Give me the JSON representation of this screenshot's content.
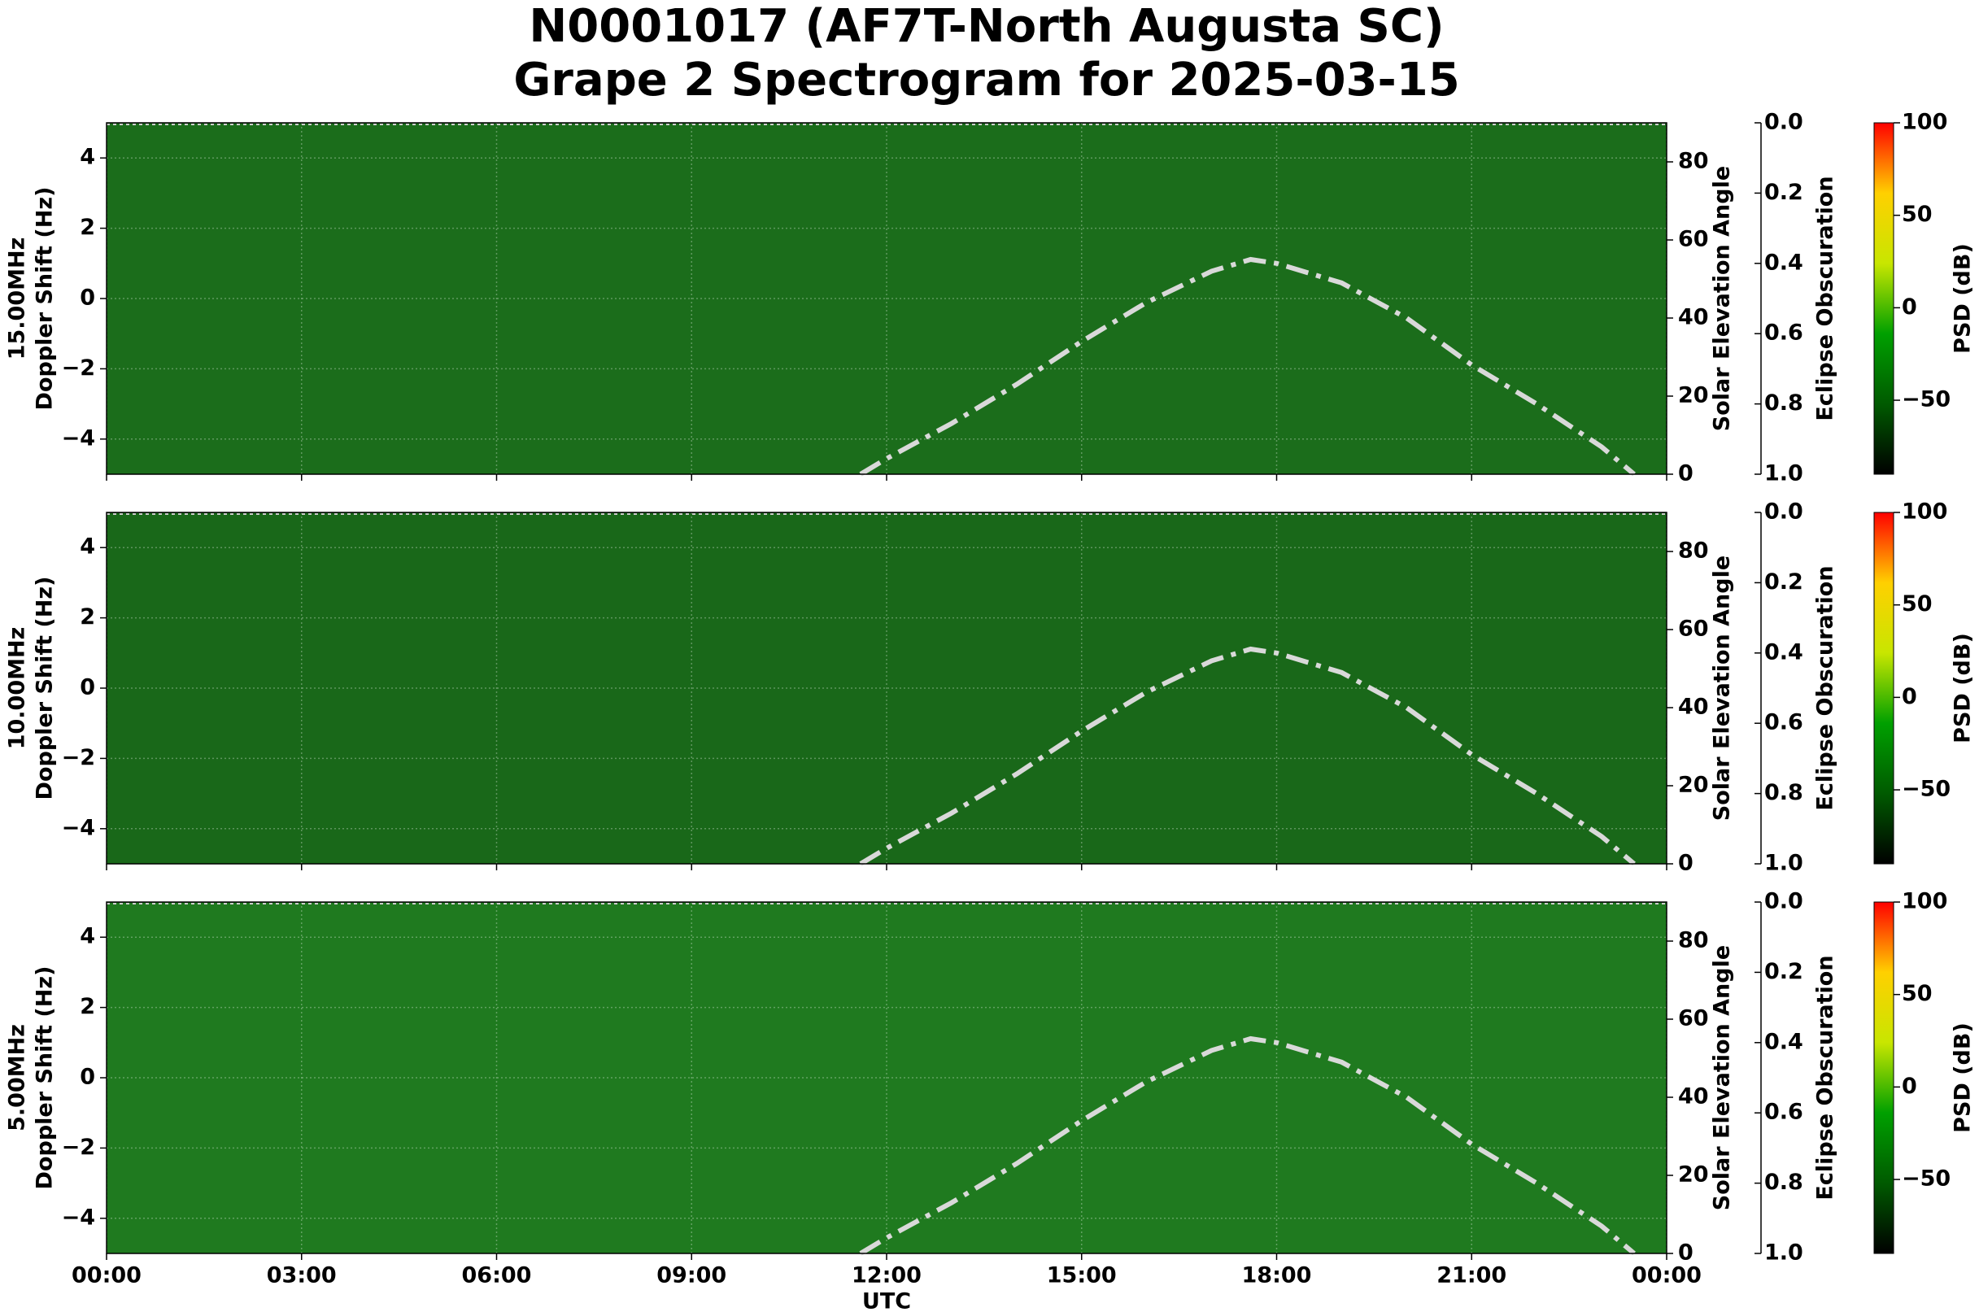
{
  "title": "N0001017 (AF7T-North Augusta SC)",
  "subtitle": "Grape 2 Spectrogram for 2025-03-15",
  "chart_data": [
    {
      "type": "spectrogram",
      "freq_label": "15.00MHz",
      "ylabel": "Doppler Shift (Hz)",
      "xlim": [
        0,
        24
      ],
      "xticks": [
        0,
        3,
        6,
        9,
        12,
        15,
        18,
        21,
        24
      ],
      "ylim": [
        -5,
        5
      ],
      "yticks": [
        {
          "value": -4,
          "label": "−4"
        },
        {
          "value": -2,
          "label": "−2"
        },
        0,
        2,
        4
      ],
      "y2label": "Solar Elevation Angle",
      "y2lim": [
        0,
        90
      ],
      "y2ticks": [
        0,
        20,
        40,
        60,
        80
      ],
      "y3label": "Eclipse Obscuration",
      "y3lim": [
        0,
        1
      ],
      "y3ticks": [
        {
          "value": 0,
          "label": "0.0"
        },
        {
          "value": 0.2,
          "label": "0.2"
        },
        {
          "value": 0.4,
          "label": "0.4"
        },
        {
          "value": 0.6,
          "label": "0.6"
        },
        {
          "value": 0.8,
          "label": "0.8"
        },
        {
          "value": 1,
          "label": "1.0"
        }
      ],
      "clabel": "PSD (dB)",
      "clim": [
        -90,
        100
      ],
      "cticks": [
        {
          "value": -50,
          "label": "−50"
        },
        0,
        50,
        100
      ],
      "colormap": [
        "#000000",
        "#005a00",
        "#00a000",
        "#c8e600",
        "#ffd000",
        "#ff0000"
      ],
      "color": "#1b6d1b",
      "grid": true,
      "series": [
        {
          "axis": "y2",
          "color": "#d9d9d9",
          "x": [
            11.6,
            12,
            13,
            14,
            15,
            16,
            17,
            17.6,
            18,
            19,
            20,
            21,
            22,
            23,
            23.5
          ],
          "values": [
            0,
            4,
            13,
            23,
            34,
            44,
            52,
            55,
            54,
            49,
            40,
            28,
            18,
            7,
            0
          ]
        }
      ]
    },
    {
      "type": "spectrogram",
      "freq_label": "10.00MHz",
      "ylabel": "Doppler Shift (Hz)",
      "xlim": [
        0,
        24
      ],
      "xticks": [
        0,
        3,
        6,
        9,
        12,
        15,
        18,
        21,
        24
      ],
      "ylim": [
        -5,
        5
      ],
      "yticks": [
        {
          "value": -4,
          "label": "−4"
        },
        {
          "value": -2,
          "label": "−2"
        },
        0,
        2,
        4
      ],
      "y2label": "Solar Elevation Angle",
      "y2lim": [
        0,
        90
      ],
      "y2ticks": [
        0,
        20,
        40,
        60,
        80
      ],
      "y3label": "Eclipse Obscuration",
      "y3lim": [
        0,
        1
      ],
      "y3ticks": [
        {
          "value": 0,
          "label": "0.0"
        },
        {
          "value": 0.2,
          "label": "0.2"
        },
        {
          "value": 0.4,
          "label": "0.4"
        },
        {
          "value": 0.6,
          "label": "0.6"
        },
        {
          "value": 0.8,
          "label": "0.8"
        },
        {
          "value": 1,
          "label": "1.0"
        }
      ],
      "clabel": "PSD (dB)",
      "clim": [
        -90,
        100
      ],
      "cticks": [
        {
          "value": -50,
          "label": "−50"
        },
        0,
        50,
        100
      ],
      "colormap": [
        "#000000",
        "#005a00",
        "#00a000",
        "#c8e600",
        "#ffd000",
        "#ff0000"
      ],
      "color": "#196819",
      "grid": true,
      "series": [
        {
          "axis": "y2",
          "color": "#d9d9d9",
          "x": [
            11.6,
            12,
            13,
            14,
            15,
            16,
            17,
            17.6,
            18,
            19,
            20,
            21,
            22,
            23,
            23.5
          ],
          "values": [
            0,
            4,
            13,
            23,
            34,
            44,
            52,
            55,
            54,
            49,
            40,
            28,
            18,
            7,
            0
          ]
        }
      ]
    },
    {
      "type": "spectrogram",
      "freq_label": "5.00MHz",
      "ylabel": "Doppler Shift (Hz)",
      "xlabel": "UTC",
      "xlim": [
        0,
        24
      ],
      "xticks": [
        {
          "value": 0,
          "label": "00:00"
        },
        {
          "value": 3,
          "label": "03:00"
        },
        {
          "value": 6,
          "label": "06:00"
        },
        {
          "value": 9,
          "label": "09:00"
        },
        {
          "value": 12,
          "label": "12:00"
        },
        {
          "value": 15,
          "label": "15:00"
        },
        {
          "value": 18,
          "label": "18:00"
        },
        {
          "value": 21,
          "label": "21:00"
        },
        {
          "value": 24,
          "label": "00:00"
        }
      ],
      "ylim": [
        -5,
        5
      ],
      "yticks": [
        {
          "value": -4,
          "label": "−4"
        },
        {
          "value": -2,
          "label": "−2"
        },
        0,
        2,
        4
      ],
      "y2label": "Solar Elevation Angle",
      "y2lim": [
        0,
        90
      ],
      "y2ticks": [
        0,
        20,
        40,
        60,
        80
      ],
      "y3label": "Eclipse Obscuration",
      "y3lim": [
        0,
        1
      ],
      "y3ticks": [
        {
          "value": 0,
          "label": "0.0"
        },
        {
          "value": 0.2,
          "label": "0.2"
        },
        {
          "value": 0.4,
          "label": "0.4"
        },
        {
          "value": 0.6,
          "label": "0.6"
        },
        {
          "value": 0.8,
          "label": "0.8"
        },
        {
          "value": 1,
          "label": "1.0"
        }
      ],
      "clabel": "PSD (dB)",
      "clim": [
        -90,
        100
      ],
      "cticks": [
        {
          "value": -50,
          "label": "−50"
        },
        0,
        50,
        100
      ],
      "colormap": [
        "#000000",
        "#005a00",
        "#00a000",
        "#c8e600",
        "#ffd000",
        "#ff0000"
      ],
      "color": "#1f7a1f",
      "grid": true,
      "series": [
        {
          "axis": "y2",
          "color": "#d9d9d9",
          "x": [
            11.6,
            12,
            13,
            14,
            15,
            16,
            17,
            17.6,
            18,
            19,
            20,
            21,
            22,
            23,
            23.5
          ],
          "values": [
            0,
            4,
            13,
            23,
            34,
            44,
            52,
            55,
            54,
            49,
            40,
            28,
            18,
            7,
            0
          ]
        }
      ]
    }
  ]
}
